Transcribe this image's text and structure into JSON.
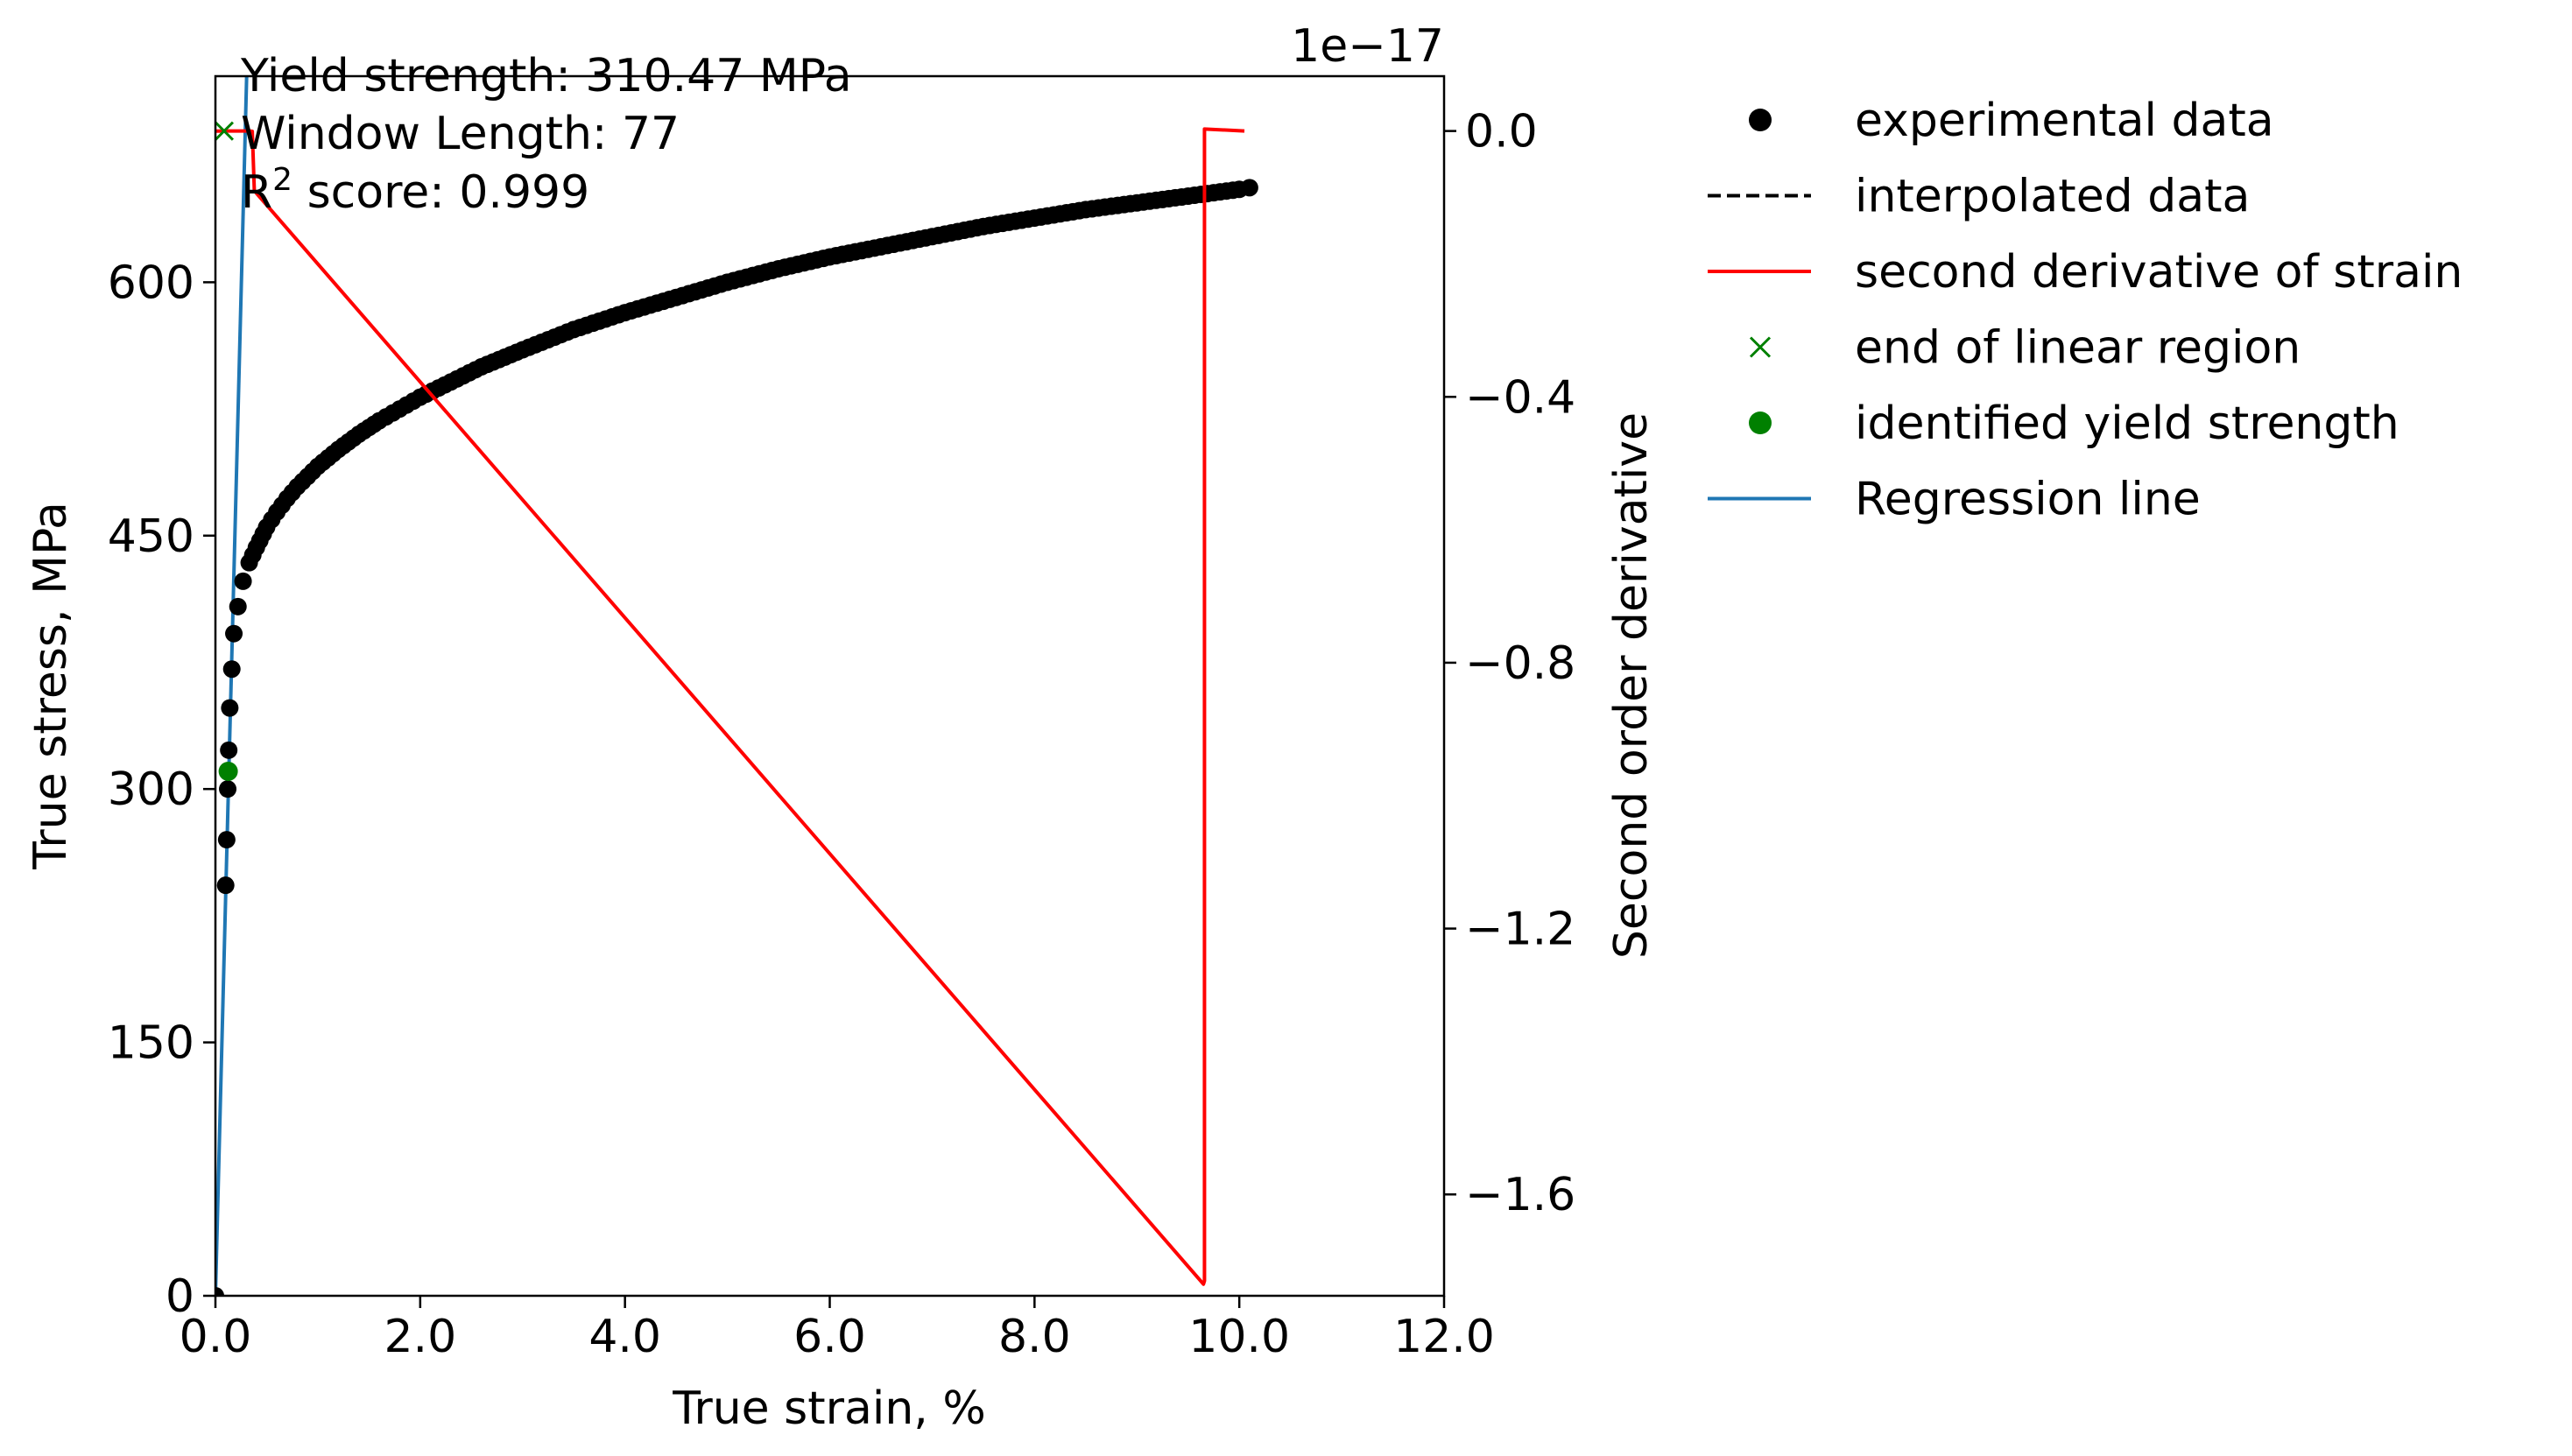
{
  "chart_data": {
    "type": "line",
    "xlabel": "True strain, %",
    "ylabel": "True stress, MPa",
    "y2label": "Second order derivative",
    "y2_offset_label": "1e−17",
    "xlim": [
      0,
      12
    ],
    "ylim": [
      0,
      722
    ],
    "y2lim": [
      -1.7525e-17,
      8.25e-19
    ],
    "x_ticks": [
      0,
      2,
      4,
      6,
      8,
      10,
      12
    ],
    "x_tick_labels": [
      "0.0",
      "2.0",
      "4.0",
      "6.0",
      "8.0",
      "10.0",
      "12.0"
    ],
    "y_ticks": [
      0,
      150,
      300,
      450,
      600
    ],
    "y_tick_labels": [
      "0",
      "150",
      "300",
      "450",
      "600"
    ],
    "y2_ticks": [
      0,
      -0.4,
      -0.8,
      -1.2,
      -1.6
    ],
    "y2_tick_labels": [
      "0.0",
      "−0.4",
      "−0.8",
      "−1.2",
      "−1.6"
    ],
    "annotations": {
      "yield": "Yield strength: 310.47 MPa",
      "window": "Window Length: 77",
      "r2_prefix": "R",
      "r2_sup": "2",
      "r2_rest": " score: 0.999"
    },
    "legend": {
      "placement": "outside right",
      "entries": [
        {
          "label": "experimental data",
          "marker": "dot",
          "color": "#000000"
        },
        {
          "label": "interpolated data",
          "marker": "dashed",
          "color": "#000000"
        },
        {
          "label": "second derivative of strain",
          "marker": "line",
          "color": "#ff0000"
        },
        {
          "label": "end of linear region",
          "marker": "x",
          "color": "#008000"
        },
        {
          "label": "identified yield strength",
          "marker": "dot",
          "color": "#008000"
        },
        {
          "label": "Regression line",
          "marker": "line",
          "color": "#1f77b4"
        }
      ]
    },
    "series": [
      {
        "name": "experimental data",
        "color": "#000000",
        "x": [
          0.0,
          0.1,
          0.11,
          0.12,
          0.13,
          0.14,
          0.16,
          0.18,
          0.22,
          0.27,
          0.33,
          0.4,
          0.5,
          0.6,
          0.7,
          0.8,
          0.9,
          1.0,
          1.2,
          1.4,
          1.6,
          1.8,
          2.0,
          2.3,
          2.6,
          3.0,
          3.5,
          4.0,
          4.5,
          5.0,
          5.5,
          6.0,
          6.5,
          7.0,
          7.5,
          8.0,
          8.5,
          9.0,
          9.5,
          10.0,
          10.1
        ],
        "y": [
          0,
          243,
          270,
          300,
          323,
          348,
          371,
          392,
          408,
          423,
          434,
          443,
          455,
          464,
          472,
          479,
          485,
          491,
          501,
          510,
          518,
          525,
          532,
          541,
          550,
          560,
          572,
          582,
          591,
          600,
          608,
          615,
          621,
          627,
          633,
          638,
          643,
          647,
          651,
          655,
          656
        ]
      },
      {
        "name": "second derivative of strain",
        "color": "#ff0000",
        "axis": "y2",
        "x": [
          0.0,
          0.28,
          0.33,
          0.36,
          0.38,
          9.65,
          9.65,
          9.66,
          9.66,
          10.05
        ],
        "y": [
          -1e-21,
          0.0,
          0.0,
          -5e-21,
          -9e-19,
          -1.735e-17,
          -1.735e-17,
          -1.73e-17,
          3e-20,
          0.0
        ]
      },
      {
        "name": "Regression line",
        "color": "#1f77b4",
        "x": [
          0.0,
          0.305
        ],
        "y": [
          0,
          722
        ]
      }
    ],
    "points": [
      {
        "name": "end of linear region",
        "axis": "y2",
        "marker": "x",
        "color": "#008000",
        "x": 0.085,
        "y": 0.0
      },
      {
        "name": "identified yield strength",
        "marker": "dot",
        "color": "#008000",
        "x": 0.125,
        "y": 310.47
      }
    ]
  }
}
